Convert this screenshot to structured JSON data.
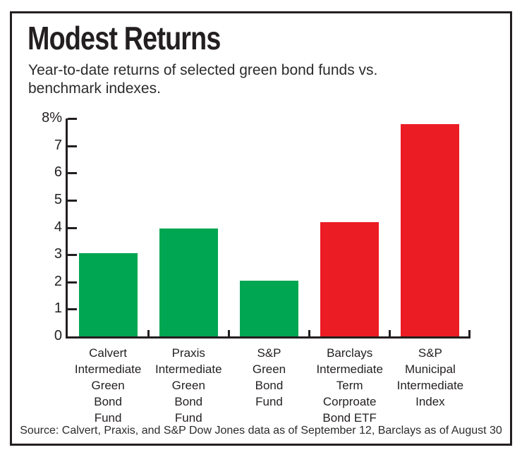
{
  "header": {
    "title": "Modest Returns",
    "subtitle_line1": "Year-to-date returns of selected green bond funds vs.",
    "subtitle_line2": "benchmark indexes."
  },
  "chart_data": {
    "type": "bar",
    "title": "Modest Returns",
    "subtitle": "Year-to-date returns of selected green bond funds vs. benchmark indexes.",
    "categories": [
      [
        "Calvert",
        "Intermediate",
        "Green",
        "Bond",
        "Fund"
      ],
      [
        "Praxis",
        "Intermediate",
        "Green",
        "Bond",
        "Fund"
      ],
      [
        "S&P",
        "Green",
        "Bond",
        "Fund"
      ],
      [
        "Barclays",
        "Intermediate",
        "Term",
        "Corproate",
        "Bond ETF"
      ],
      [
        "S&P",
        "Municipal",
        "Intermediate",
        "Index"
      ]
    ],
    "values": [
      3.05,
      3.95,
      2.05,
      4.2,
      7.8
    ],
    "bar_colors": [
      "#00A651",
      "#00A651",
      "#00A651",
      "#EC1C24",
      "#EC1C24"
    ],
    "xlabel": "",
    "ylabel": "",
    "ylim": [
      0,
      8
    ],
    "ytick_values": [
      8,
      7,
      6,
      5,
      4,
      3,
      2,
      1,
      0
    ],
    "ytick_labels": [
      "8%",
      "7",
      "6",
      "5",
      "4",
      "3",
      "2",
      "1",
      "0"
    ],
    "grid": false,
    "legend": false,
    "source": "Source: Calvert, Praxis, and S&P Dow Jones data as of September 12, Barclays as of August 30",
    "accent_colors": {
      "green": "#00A651",
      "red": "#EC1C24",
      "axis": "#231F20"
    }
  }
}
